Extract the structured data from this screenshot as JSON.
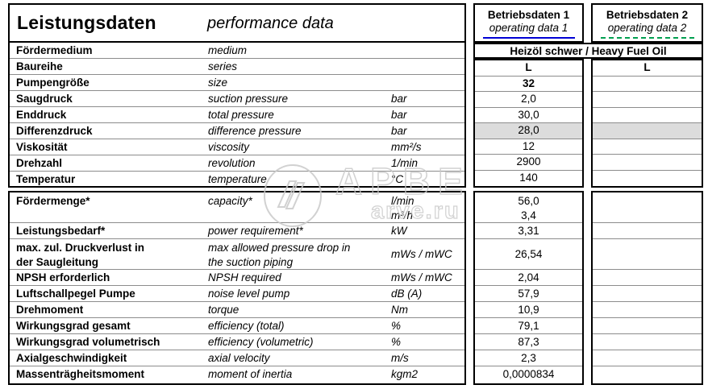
{
  "header": {
    "title_de": "Leistungsdaten",
    "title_en": "performance data",
    "operating1": {
      "title": "Betriebsdaten 1",
      "subtitle": "operating data 1"
    },
    "operating2": {
      "title": "Betriebsdaten 2",
      "subtitle": "operating data 2"
    }
  },
  "medium_value": "Heizöl schwer / Heavy Fuel Oil",
  "rows_upper": [
    {
      "de": "Fördermedium",
      "en": "medium",
      "unit": "",
      "merged": true
    },
    {
      "de": "Baureihe",
      "en": "series",
      "unit": "",
      "v1": "L",
      "v2": "L",
      "bold": true
    },
    {
      "de": "Pumpengröße",
      "en": "size",
      "unit": "",
      "v1": "32",
      "v2": "",
      "bold": true
    },
    {
      "de": "Saugdruck",
      "en": "suction pressure",
      "unit": "bar",
      "v1": "2,0",
      "v2": ""
    },
    {
      "de": "Enddruck",
      "en": "total pressure",
      "unit": "bar",
      "v1": "30,0",
      "v2": ""
    },
    {
      "de": "Differenzdruck",
      "en": "difference pressure",
      "unit": "bar",
      "v1": "28,0",
      "v2": "",
      "highlight": true
    },
    {
      "de": "Viskosität",
      "en": "viscosity",
      "unit": "mm²/s",
      "v1": "12",
      "v2": ""
    },
    {
      "de": "Drehzahl",
      "en": "revolution",
      "unit": "1/min",
      "v1": "2900",
      "v2": ""
    },
    {
      "de": "Temperatur",
      "en": "temperature",
      "unit": "°C",
      "v1": "140",
      "v2": ""
    }
  ],
  "rows_lower": [
    {
      "de": "Fördermenge*",
      "en": "capacity*",
      "unit": [
        "l/min",
        "m³/h"
      ],
      "v1": [
        "56,0",
        "3,4"
      ],
      "v2": [
        "",
        ""
      ]
    },
    {
      "de": "Leistungsbedarf*",
      "en": "power requirement*",
      "unit": "kW",
      "v1": "3,31",
      "v2": ""
    },
    {
      "de": [
        "max. zul. Druckverlust in",
        "der Saugleitung"
      ],
      "en": [
        "max allowed pressure drop in",
        "the suction piping"
      ],
      "unit": "mWs / mWC",
      "v1": "26,54",
      "v2": ""
    },
    {
      "de": "NPSH erforderlich",
      "en": "NPSH required",
      "unit": "mWs / mWC",
      "v1": "2,04",
      "v2": ""
    },
    {
      "de": "Luftschallpegel Pumpe",
      "en": "noise level pump",
      "unit": "dB (A)",
      "v1": "57,9",
      "v2": ""
    },
    {
      "de": "Drehmoment",
      "en": "torque",
      "unit": "Nm",
      "v1": "10,9",
      "v2": ""
    },
    {
      "de": "Wirkungsgrad gesamt",
      "en": "efficiency (total)",
      "unit": "%",
      "v1": "79,1",
      "v2": ""
    },
    {
      "de": "Wirkungsgrad volumetrisch",
      "en": "efficiency (volumetric)",
      "unit": "%",
      "v1": "87,3",
      "v2": ""
    },
    {
      "de": "Axialgeschwindigkeit",
      "en": "axial velocity",
      "unit": "m/s",
      "v1": "2,3",
      "v2": ""
    },
    {
      "de": "Massenträgheitsmoment",
      "en": "moment of inertia",
      "unit": "kgm2",
      "v1": "0,0000834",
      "v2": ""
    }
  ],
  "watermark": {
    "letters": "АРВЕ",
    "url": "arve.ru"
  },
  "colors": {
    "underline_data1": "#0000d4",
    "underline_data2": "#00a050",
    "row_highlight": "#dcdcdc",
    "grid_line": "#8c8c8c",
    "border": "#000000"
  }
}
